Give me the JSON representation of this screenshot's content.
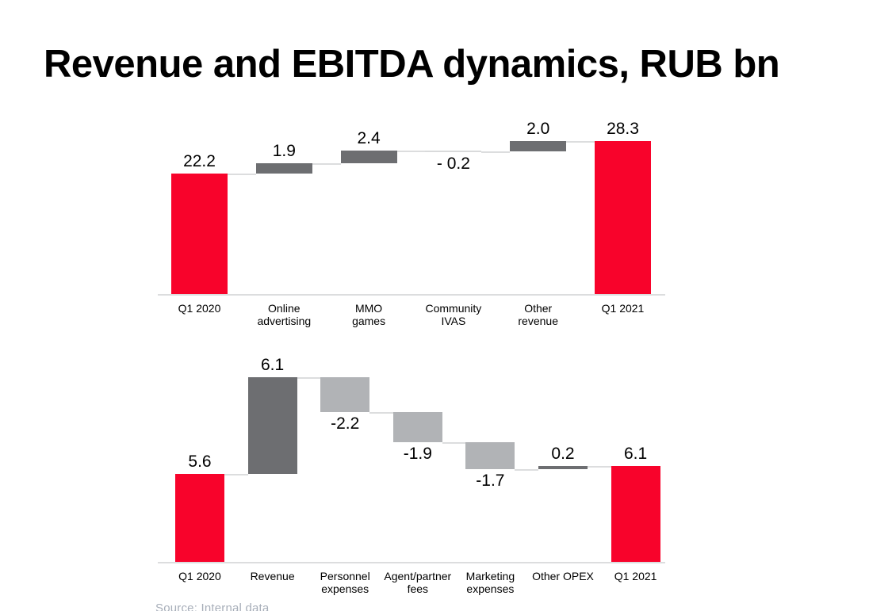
{
  "title": "Revenue and EBITDA dynamics, RUB bn",
  "source_note": "Source: Internal data",
  "colors": {
    "total_bar": "#f8032b",
    "positive_bar": "#6d6e71",
    "negative_bar": "#b1b3b6",
    "connector": "#dcddde",
    "axis_line": "#dcddde",
    "label_text": "#000000",
    "source_text": "#a7aeb9"
  },
  "chart_data": [
    {
      "type": "waterfall",
      "categories": [
        "Q1 2020",
        "Online\nadvertising",
        "MMO\ngames",
        "Community\nIVAS",
        "Other\nrevenue",
        "Q1 2021"
      ],
      "values": [
        22.2,
        1.9,
        2.4,
        -0.2,
        2.0,
        28.3
      ],
      "labels": [
        "22.2",
        "1.9",
        "2.4",
        "- 0.2",
        "2.0",
        "28.3"
      ],
      "bar_types": [
        "total",
        "step",
        "step",
        "step",
        "step",
        "total"
      ],
      "label_positions": [
        "above",
        "above",
        "above",
        "below",
        "above",
        "above"
      ],
      "bar_colors": [
        "#f8032b",
        "#6d6e71",
        "#6d6e71",
        "#d9dadb",
        "#6d6e71",
        "#f8032b"
      ],
      "ylim": [
        0,
        28.3
      ],
      "grid": false,
      "legend": false
    },
    {
      "type": "waterfall",
      "categories": [
        "Q1 2020",
        "Revenue",
        "Personnel\nexpenses",
        "Agent/partner\nfees",
        "Marketing\nexpenses",
        "Other OPEX",
        "Q1 2021"
      ],
      "values": [
        5.6,
        6.1,
        -2.2,
        -1.9,
        -1.7,
        0.2,
        6.1
      ],
      "labels": [
        "5.6",
        "6.1",
        "-2.2",
        "-1.9",
        "-1.7",
        "0.2",
        "6.1"
      ],
      "bar_types": [
        "total",
        "step",
        "step",
        "step",
        "step",
        "step",
        "total"
      ],
      "label_positions": [
        "above",
        "above",
        "below",
        "below",
        "below",
        "above",
        "above"
      ],
      "bar_colors": [
        "#f8032b",
        "#6d6e71",
        "#b1b3b6",
        "#b1b3b6",
        "#b1b3b6",
        "#6d6e71",
        "#f8032b"
      ],
      "ylim": [
        0,
        11.7
      ],
      "grid": false,
      "legend": false
    }
  ]
}
